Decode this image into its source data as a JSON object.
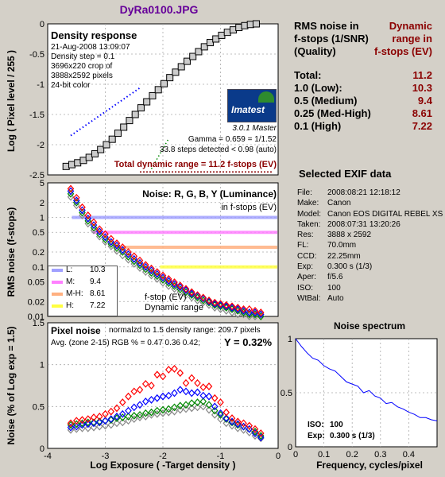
{
  "title": "DyRa0100.JPG",
  "colors": {
    "title": "#660099",
    "darkred": "#8b0000",
    "red": "#ff0000",
    "green": "#008800",
    "blue": "#0000ff",
    "gray": "#888888"
  },
  "density_panel": {
    "heading": "Density response",
    "info_lines": [
      "21-Aug-2008 13:09:07",
      "Density step = 0.1",
      "3696x220 crop of",
      "3888x2592 pixels",
      "24-bit color"
    ],
    "logo_text": "Imatest",
    "version": "3.0.1  Master",
    "gamma": "Gamma = 0.659 = 1/1.52",
    "steps": "33.8 steps detected < 0.98 (auto)",
    "total_dr": "Total dynamic range = 11.2 f-stops (EV)"
  },
  "noise_fstops_panel": {
    "heading": "Noise: R, G, B, Y (Luminance)",
    "subheading": "in f-stops (EV)",
    "fstop_label": "f-stop (EV)",
    "dr_label": "Dynamic range",
    "legend": [
      {
        "key": "L:",
        "value": "10.3",
        "color": "#a0a0ff"
      },
      {
        "key": "M:",
        "value": "9.4",
        "color": "#ff80ff"
      },
      {
        "key": "M-H:",
        "value": "8.61",
        "color": "#ffb080"
      },
      {
        "key": "H:",
        "value": "7.22",
        "color": "#ffff40"
      }
    ]
  },
  "pixel_noise_panel": {
    "heading": "Pixel noise",
    "norm": "normalzd to 1.5 density range: 209.7 pixels",
    "avg": "Avg. (zone 2-15) RGB % = 0.47  0.36  0.42;",
    "y_value": "Y = 0.32%"
  },
  "table": {
    "head_left": [
      "RMS noise in",
      "f-stops (1/SNR)",
      "(Quality)"
    ],
    "head_right": [
      "Dynamic",
      "range in",
      "f-stops (EV)"
    ],
    "rows": [
      {
        "label": "Total:",
        "value": "11.2"
      },
      {
        "label": "1.0   (Low):",
        "value": "10.3"
      },
      {
        "label": "0.5   (Medium)",
        "value": "9.4"
      },
      {
        "label": "0.25 (Med-High)",
        "value": "8.61"
      },
      {
        "label": "0.1    (High)",
        "value": "7.22"
      }
    ]
  },
  "exif": {
    "title": "Selected EXIF data",
    "rows": [
      {
        "key": "File:",
        "value": "2008:08:21 12:18:12"
      },
      {
        "key": "Make:",
        "value": "Canon"
      },
      {
        "key": "Model:",
        "value": "Canon EOS DIGITAL REBEL XS"
      },
      {
        "key": "Taken:",
        "value": "2008:07:31 13:20:26"
      },
      {
        "key": "Res:",
        "value": "3888 x 2592"
      },
      {
        "key": "FL:",
        "value": "70.0mm"
      },
      {
        "key": "CCD:",
        "value": "22.25mm"
      },
      {
        "key": "Exp:",
        "value": "0.300 s  (1/3)"
      },
      {
        "key": "Aper:",
        "value": "f/5.6"
      },
      {
        "key": "ISO:",
        "value": "100"
      },
      {
        "key": "WtBal:",
        "value": "Auto"
      }
    ]
  },
  "spectrum": {
    "title": "Noise spectrum",
    "iso_key": "ISO:",
    "iso_value": "100",
    "exp_key": "Exp:",
    "exp_value": "0.300 s  (1/3)"
  },
  "chart_data": [
    {
      "type": "line",
      "id": "density",
      "ylabel": "Log ( Pixel level / 255 )",
      "xlim": [
        -4,
        0
      ],
      "ylim": [
        -2.5,
        0
      ],
      "yticks": [
        "-2.5",
        "-2",
        "-1.5",
        "-1",
        "-0.5",
        "0"
      ],
      "series": [
        {
          "x": [
            -3.68,
            -3.58,
            -3.48,
            -3.38,
            -3.28,
            -3.18,
            -3.08,
            -2.98,
            -2.88,
            -2.78,
            -2.68,
            -2.58,
            -2.48,
            -2.38,
            -2.28,
            -2.18,
            -2.08,
            -1.98,
            -1.88,
            -1.78,
            -1.68,
            -1.58,
            -1.48,
            -1.38,
            -1.28,
            -1.18,
            -1.08,
            -0.98,
            -0.88,
            -0.78,
            -0.68,
            -0.58,
            -0.48,
            -0.38
          ],
          "y": [
            -2.36,
            -2.33,
            -2.3,
            -2.26,
            -2.21,
            -2.15,
            -2.08,
            -2.0,
            -1.91,
            -1.81,
            -1.71,
            -1.6,
            -1.5,
            -1.39,
            -1.29,
            -1.19,
            -1.09,
            -0.99,
            -0.89,
            -0.8,
            -0.71,
            -0.62,
            -0.54,
            -0.46,
            -0.38,
            -0.31,
            -0.25,
            -0.19,
            -0.14,
            -0.1,
            -0.06,
            -0.03,
            -0.01,
            0.0
          ]
        }
      ],
      "gamma_fit": {
        "x": [
          -3.6,
          -2.4
        ],
        "y": [
          -1.85,
          -1.06
        ]
      }
    },
    {
      "type": "scatter",
      "id": "noise_fstops",
      "ylabel": "RMS noise (f-stops)",
      "xlim": [
        -4,
        0
      ],
      "ylim": [
        0.01,
        5
      ],
      "yscale": "log",
      "yticks": [
        "5",
        "2",
        "1",
        "0.5",
        "0.2",
        "0.1",
        "0.05",
        "0.02",
        "0.01"
      ],
      "x": [
        -3.6,
        -3.5,
        -3.4,
        -3.3,
        -3.2,
        -3.1,
        -3.0,
        -2.9,
        -2.8,
        -2.7,
        -2.6,
        -2.5,
        -2.4,
        -2.3,
        -2.2,
        -2.1,
        -2.0,
        -1.9,
        -1.8,
        -1.7,
        -1.6,
        -1.5,
        -1.4,
        -1.3,
        -1.2,
        -1.1,
        -1.0,
        -0.9,
        -0.8,
        -0.7,
        -0.6,
        -0.5,
        -0.4,
        -0.3
      ],
      "series": [
        {
          "name": "R",
          "values": [
            3.8,
            2.5,
            1.6,
            1.1,
            0.8,
            0.58,
            0.46,
            0.37,
            0.3,
            0.25,
            0.2,
            0.165,
            0.135,
            0.11,
            0.093,
            0.079,
            0.067,
            0.057,
            0.049,
            0.042,
            0.036,
            0.031,
            0.027,
            0.024,
            0.021,
            0.019,
            0.018,
            0.017,
            0.016,
            0.015,
            0.014,
            0.014,
            0.013,
            0.012
          ]
        },
        {
          "name": "G",
          "values": [
            3.0,
            2.0,
            1.25,
            0.85,
            0.62,
            0.46,
            0.36,
            0.29,
            0.24,
            0.2,
            0.16,
            0.13,
            0.108,
            0.09,
            0.076,
            0.065,
            0.055,
            0.047,
            0.041,
            0.035,
            0.031,
            0.027,
            0.024,
            0.021,
            0.019,
            0.017,
            0.016,
            0.015,
            0.014,
            0.013,
            0.012,
            0.011,
            0.011,
            0.01
          ]
        },
        {
          "name": "B",
          "values": [
            3.4,
            2.2,
            1.4,
            0.95,
            0.7,
            0.52,
            0.4,
            0.32,
            0.27,
            0.22,
            0.18,
            0.145,
            0.12,
            0.1,
            0.085,
            0.072,
            0.061,
            0.052,
            0.045,
            0.039,
            0.034,
            0.029,
            0.026,
            0.023,
            0.02,
            0.018,
            0.017,
            0.016,
            0.015,
            0.014,
            0.013,
            0.012,
            0.012,
            0.011
          ]
        },
        {
          "name": "Y",
          "values": [
            2.6,
            1.75,
            1.1,
            0.75,
            0.55,
            0.41,
            0.32,
            0.26,
            0.21,
            0.17,
            0.14,
            0.115,
            0.095,
            0.079,
            0.067,
            0.057,
            0.048,
            0.041,
            0.036,
            0.031,
            0.027,
            0.024,
            0.021,
            0.019,
            0.017,
            0.015,
            0.014,
            0.013,
            0.012,
            0.011,
            0.011,
            0.01,
            0.01,
            0.01
          ]
        }
      ],
      "thresholds": [
        {
          "value": 1.0,
          "xstart": -3.58
        },
        {
          "value": 0.5,
          "xstart": -3.22
        },
        {
          "value": 0.25,
          "xstart": -2.85
        },
        {
          "value": 0.1,
          "xstart": -2.05
        }
      ]
    },
    {
      "type": "scatter",
      "id": "pixel_noise",
      "xlabel": "Log Exposure  ( -Target density )",
      "ylabel": "Noise (% of Log exp = 1.5)",
      "xlim": [
        -4,
        0
      ],
      "ylim": [
        0,
        1.5
      ],
      "xticks": [
        "-4",
        "-3",
        "-2",
        "-1",
        "0"
      ],
      "yticks": [
        "0",
        "0.5",
        "1",
        "1.5"
      ],
      "x": [
        -3.6,
        -3.5,
        -3.4,
        -3.3,
        -3.2,
        -3.1,
        -3.0,
        -2.9,
        -2.8,
        -2.7,
        -2.6,
        -2.5,
        -2.4,
        -2.3,
        -2.2,
        -2.1,
        -2.0,
        -1.9,
        -1.8,
        -1.7,
        -1.6,
        -1.5,
        -1.4,
        -1.3,
        -1.2,
        -1.1,
        -1.0,
        -0.9,
        -0.8,
        -0.7,
        -0.6,
        -0.5,
        -0.4,
        -0.3
      ],
      "series": [
        {
          "name": "R",
          "values": [
            0.3,
            0.33,
            0.34,
            0.35,
            0.37,
            0.38,
            0.41,
            0.44,
            0.48,
            0.55,
            0.62,
            0.68,
            0.7,
            0.77,
            0.75,
            0.88,
            0.86,
            0.94,
            0.95,
            0.9,
            0.78,
            0.84,
            0.78,
            0.73,
            0.74,
            0.6,
            0.55,
            0.43,
            0.36,
            0.32,
            0.3,
            0.27,
            0.23,
            0.18
          ]
        },
        {
          "name": "G",
          "values": [
            0.28,
            0.29,
            0.3,
            0.31,
            0.31,
            0.32,
            0.33,
            0.34,
            0.36,
            0.37,
            0.38,
            0.39,
            0.4,
            0.42,
            0.43,
            0.45,
            0.46,
            0.47,
            0.49,
            0.51,
            0.52,
            0.54,
            0.55,
            0.56,
            0.52,
            0.45,
            0.4,
            0.35,
            0.31,
            0.28,
            0.26,
            0.23,
            0.2,
            0.15
          ]
        },
        {
          "name": "B",
          "values": [
            0.25,
            0.26,
            0.28,
            0.29,
            0.3,
            0.31,
            0.33,
            0.35,
            0.38,
            0.41,
            0.45,
            0.49,
            0.52,
            0.56,
            0.58,
            0.6,
            0.62,
            0.63,
            0.66,
            0.7,
            0.68,
            0.66,
            0.67,
            0.63,
            0.62,
            0.5,
            0.42,
            0.36,
            0.32,
            0.29,
            0.26,
            0.23,
            0.18,
            0.13
          ]
        },
        {
          "name": "Y",
          "values": [
            0.22,
            0.23,
            0.24,
            0.24,
            0.25,
            0.26,
            0.27,
            0.28,
            0.3,
            0.31,
            0.33,
            0.35,
            0.37,
            0.38,
            0.4,
            0.41,
            0.42,
            0.43,
            0.44,
            0.46,
            0.47,
            0.48,
            0.49,
            0.5,
            0.46,
            0.4,
            0.35,
            0.3,
            0.27,
            0.24,
            0.22,
            0.19,
            0.15,
            0.12
          ]
        }
      ]
    },
    {
      "type": "line",
      "id": "noise_spectrum",
      "xlabel": "Frequency, cycles/pixel",
      "xlim": [
        0,
        0.5
      ],
      "ylim": [
        0,
        1
      ],
      "xticks": [
        "0",
        "0.1",
        "0.2",
        "0.3",
        "0.4"
      ],
      "yticks": [
        "0",
        "0.5",
        "1"
      ],
      "x": [
        0,
        0.02,
        0.04,
        0.06,
        0.08,
        0.1,
        0.12,
        0.14,
        0.16,
        0.18,
        0.2,
        0.22,
        0.24,
        0.26,
        0.28,
        0.3,
        0.32,
        0.34,
        0.36,
        0.38,
        0.4,
        0.42,
        0.44,
        0.46,
        0.48,
        0.5
      ],
      "values": [
        1.0,
        0.93,
        0.87,
        0.82,
        0.8,
        0.75,
        0.72,
        0.7,
        0.65,
        0.6,
        0.58,
        0.56,
        0.5,
        0.52,
        0.47,
        0.45,
        0.4,
        0.41,
        0.37,
        0.35,
        0.32,
        0.3,
        0.27,
        0.27,
        0.25,
        0.24
      ]
    }
  ]
}
